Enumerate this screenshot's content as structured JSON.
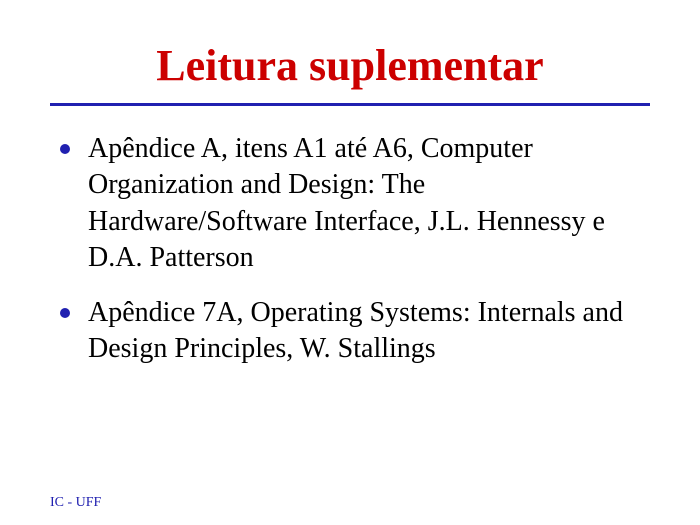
{
  "title": "Leitura suplementar",
  "title_color": "#cc0000",
  "divider_color": "#2020b0",
  "bullet_color": "#2020b0",
  "text_color": "#000000",
  "background_color": "#ffffff",
  "items": [
    "Apêndice A, itens A1 até A6, Computer Organization and Design: The Hardware/Software Interface, J.L. Hennessy e D.A. Patterson",
    "Apêndice 7A, Operating Systems: Internals and Design Principles, W. Stallings"
  ],
  "footer": "IC - UFF",
  "footer_color": "#2020b0",
  "title_fontsize": 44,
  "body_fontsize": 28,
  "footer_fontsize": 14
}
